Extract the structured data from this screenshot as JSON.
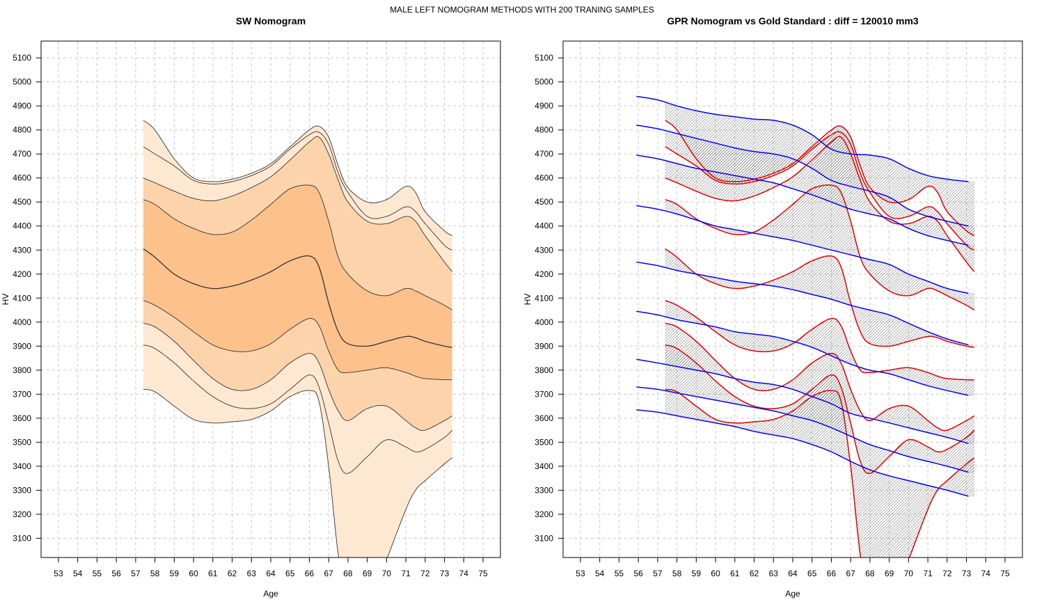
{
  "figure": {
    "suptitle": "MALE LEFT NOMOGRAM METHODS WITH 200 TRANING SAMPLES"
  },
  "chart_data": [
    {
      "type": "area",
      "title": "SW Nomogram",
      "xlabel": "Age",
      "ylabel": "HV",
      "xlim": [
        52.1,
        75.9
      ],
      "ylim": [
        3020,
        5170
      ],
      "xticks": [
        53,
        54,
        55,
        56,
        57,
        58,
        59,
        60,
        61,
        62,
        63,
        64,
        65,
        66,
        67,
        68,
        69,
        70,
        71,
        72,
        73,
        74,
        75
      ],
      "yticks": [
        3100,
        3200,
        3300,
        3400,
        3500,
        3600,
        3700,
        3800,
        3900,
        4000,
        4100,
        4200,
        4300,
        4400,
        4500,
        4600,
        4700,
        4800,
        4900,
        5000,
        5100
      ],
      "grid": true,
      "band_colors": [
        "#fee8d2",
        "#fdd3ab",
        "#fdc18c",
        "#fdb475"
      ],
      "line_color": "#333333",
      "x": [
        57.4,
        58,
        59,
        60,
        61,
        62,
        63,
        64,
        65,
        66,
        66.5,
        67,
        67.5,
        68,
        69,
        70,
        71,
        71.5,
        72,
        73,
        73.4
      ],
      "series": [
        {
          "values": [
            4840,
            4800,
            4680,
            4600,
            4585,
            4595,
            4620,
            4660,
            4730,
            4800,
            4815,
            4770,
            4650,
            4560,
            4500,
            4510,
            4565,
            4540,
            4460,
            4380,
            4360
          ]
        },
        {
          "values": [
            4730,
            4700,
            4650,
            4590,
            4575,
            4585,
            4610,
            4650,
            4720,
            4780,
            4790,
            4740,
            4620,
            4540,
            4440,
            4440,
            4480,
            4460,
            4410,
            4320,
            4300
          ]
        },
        {
          "values": [
            4600,
            4580,
            4545,
            4515,
            4505,
            4525,
            4560,
            4605,
            4675,
            4750,
            4770,
            4700,
            4590,
            4500,
            4420,
            4410,
            4440,
            4420,
            4360,
            4250,
            4210
          ]
        },
        {
          "values": [
            4510,
            4490,
            4430,
            4390,
            4365,
            4375,
            4425,
            4490,
            4555,
            4570,
            4540,
            4420,
            4270,
            4200,
            4130,
            4110,
            4140,
            4130,
            4110,
            4070,
            4050
          ]
        },
        {
          "values": [
            4305,
            4270,
            4200,
            4160,
            4140,
            4150,
            4175,
            4210,
            4255,
            4275,
            4230,
            4080,
            3960,
            3910,
            3900,
            3920,
            3940,
            3935,
            3920,
            3900,
            3895
          ]
        },
        {
          "values": [
            4090,
            4070,
            4020,
            3960,
            3905,
            3880,
            3880,
            3910,
            3970,
            4015,
            3985,
            3880,
            3800,
            3790,
            3800,
            3810,
            3790,
            3775,
            3765,
            3760,
            3760
          ]
        },
        {
          "values": [
            3995,
            3980,
            3920,
            3840,
            3765,
            3720,
            3720,
            3760,
            3830,
            3870,
            3830,
            3720,
            3630,
            3590,
            3640,
            3650,
            3590,
            3560,
            3550,
            3590,
            3610
          ]
        },
        {
          "values": [
            3905,
            3890,
            3830,
            3755,
            3690,
            3650,
            3640,
            3660,
            3720,
            3780,
            3730,
            3580,
            3420,
            3370,
            3440,
            3510,
            3480,
            3460,
            3470,
            3520,
            3550
          ]
        },
        {
          "values": [
            3720,
            3710,
            3650,
            3595,
            3580,
            3585,
            3595,
            3630,
            3690,
            3715,
            3670,
            3400,
            3030,
            2800,
            2800,
            3010,
            3220,
            3300,
            3340,
            3410,
            3435
          ]
        }
      ]
    },
    {
      "type": "line",
      "title": "GPR Nomogram vs Gold Standard : diff = 120010 mm3",
      "xlabel": "Age",
      "ylabel": "HV",
      "xlim": [
        52.1,
        75.9
      ],
      "ylim": [
        3020,
        5170
      ],
      "xticks": [
        53,
        54,
        55,
        56,
        57,
        58,
        59,
        60,
        61,
        62,
        63,
        64,
        65,
        66,
        67,
        68,
        69,
        70,
        71,
        72,
        73,
        74,
        75
      ],
      "yticks": [
        3100,
        3200,
        3300,
        3400,
        3500,
        3600,
        3700,
        3800,
        3900,
        4000,
        4100,
        4200,
        4300,
        4400,
        4500,
        4600,
        4700,
        4800,
        4900,
        5000,
        5100
      ],
      "grid": true,
      "gpr_color": "#0000ee",
      "gold_color": "#dd0000",
      "shade_color": "#aaaaaa",
      "gpr_x": [
        55.9,
        57,
        58,
        59,
        60,
        61,
        62,
        63,
        64,
        65,
        66,
        67,
        68,
        69,
        70,
        71,
        72,
        73.1
      ],
      "gpr_series": [
        {
          "values": [
            4940,
            4925,
            4900,
            4880,
            4865,
            4855,
            4845,
            4840,
            4820,
            4780,
            4720,
            4700,
            4695,
            4680,
            4640,
            4610,
            4595,
            4585
          ]
        },
        {
          "values": [
            4820,
            4805,
            4785,
            4765,
            4745,
            4725,
            4710,
            4700,
            4680,
            4640,
            4590,
            4565,
            4545,
            4520,
            4470,
            4440,
            4420,
            4400
          ]
        },
        {
          "values": [
            4695,
            4680,
            4660,
            4640,
            4625,
            4610,
            4595,
            4580,
            4555,
            4530,
            4500,
            4470,
            4450,
            4430,
            4390,
            4360,
            4340,
            4320
          ]
        },
        {
          "values": [
            4485,
            4470,
            4450,
            4425,
            4400,
            4385,
            4370,
            4355,
            4340,
            4320,
            4300,
            4280,
            4260,
            4240,
            4200,
            4170,
            4140,
            4120
          ]
        },
        {
          "values": [
            4250,
            4235,
            4215,
            4200,
            4185,
            4170,
            4160,
            4150,
            4135,
            4115,
            4095,
            4070,
            4050,
            4030,
            3995,
            3960,
            3930,
            3905
          ]
        },
        {
          "values": [
            4045,
            4030,
            4010,
            3995,
            3980,
            3960,
            3950,
            3940,
            3920,
            3895,
            3860,
            3825,
            3800,
            3785,
            3760,
            3735,
            3715,
            3695
          ]
        },
        {
          "values": [
            3845,
            3830,
            3815,
            3800,
            3785,
            3765,
            3750,
            3740,
            3720,
            3690,
            3660,
            3620,
            3600,
            3580,
            3560,
            3540,
            3520,
            3495
          ]
        },
        {
          "values": [
            3730,
            3720,
            3705,
            3690,
            3675,
            3660,
            3645,
            3630,
            3610,
            3590,
            3560,
            3525,
            3490,
            3465,
            3440,
            3420,
            3400,
            3375
          ]
        },
        {
          "values": [
            3635,
            3625,
            3610,
            3595,
            3580,
            3565,
            3545,
            3530,
            3515,
            3490,
            3460,
            3420,
            3385,
            3360,
            3340,
            3320,
            3300,
            3275
          ]
        }
      ]
    }
  ]
}
